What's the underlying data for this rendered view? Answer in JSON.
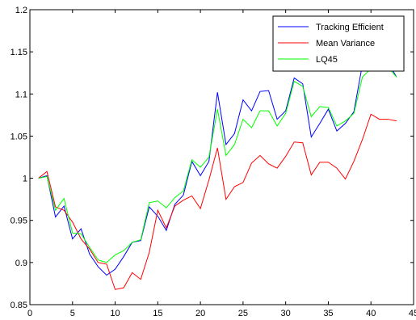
{
  "chart_data": {
    "type": "line",
    "title": "",
    "xlabel": "",
    "ylabel": "",
    "xlim": [
      0,
      45
    ],
    "ylim": [
      0.85,
      1.2
    ],
    "xticks": [
      0,
      5,
      10,
      15,
      20,
      25,
      30,
      35,
      40,
      45
    ],
    "yticks": [
      0.85,
      0.9,
      0.95,
      1,
      1.05,
      1.1,
      1.15,
      1.2
    ],
    "xtick_labels": [
      "0",
      "5",
      "10",
      "15",
      "20",
      "25",
      "30",
      "35",
      "40",
      "45"
    ],
    "ytick_labels": [
      "0.85",
      "0.9",
      "0.95",
      "1",
      "1.05",
      "1.1",
      "1.15",
      "1.2"
    ],
    "grid": false,
    "legend_position": "top-right",
    "x": [
      1,
      2,
      3,
      4,
      5,
      6,
      7,
      8,
      9,
      10,
      11,
      12,
      13,
      14,
      15,
      16,
      17,
      18,
      19,
      20,
      21,
      22,
      23,
      24,
      25,
      26,
      27,
      28,
      29,
      30,
      31,
      32,
      33,
      34,
      35,
      36,
      37,
      38,
      39,
      40,
      41,
      42,
      43
    ],
    "series": [
      {
        "name": "Tracking Efficient",
        "color": "#0000ff",
        "values": [
          1.0,
          1.003,
          0.954,
          0.967,
          0.928,
          0.94,
          0.91,
          0.895,
          0.885,
          0.892,
          0.907,
          0.924,
          0.926,
          0.966,
          0.955,
          0.938,
          0.969,
          0.98,
          1.02,
          1.003,
          1.02,
          1.102,
          1.04,
          1.053,
          1.093,
          1.08,
          1.103,
          1.104,
          1.07,
          1.08,
          1.119,
          1.112,
          1.049,
          1.065,
          1.082,
          1.056,
          1.065,
          1.079,
          1.135,
          1.14,
          1.142,
          1.138,
          1.12
        ]
      },
      {
        "name": "Mean Variance",
        "color": "#ff0000",
        "values": [
          1.0,
          1.008,
          0.966,
          0.962,
          0.948,
          0.928,
          0.916,
          0.9,
          0.898,
          0.868,
          0.87,
          0.888,
          0.88,
          0.912,
          0.962,
          0.941,
          0.967,
          0.974,
          0.979,
          0.964,
          0.998,
          1.036,
          0.975,
          0.99,
          0.995,
          1.018,
          1.027,
          1.017,
          1.012,
          1.026,
          1.043,
          1.042,
          1.004,
          1.019,
          1.019,
          1.012,
          0.999,
          1.02,
          1.046,
          1.076,
          1.07,
          1.07,
          1.068
        ]
      },
      {
        "name": "LQ45",
        "color": "#00ff00",
        "values": [
          1.0,
          1.002,
          0.962,
          0.976,
          0.935,
          0.934,
          0.918,
          0.903,
          0.9,
          0.909,
          0.914,
          0.924,
          0.927,
          0.971,
          0.973,
          0.965,
          0.977,
          0.985,
          1.022,
          1.013,
          1.025,
          1.082,
          1.027,
          1.04,
          1.07,
          1.06,
          1.08,
          1.08,
          1.062,
          1.077,
          1.115,
          1.109,
          1.073,
          1.085,
          1.084,
          1.062,
          1.068,
          1.077,
          1.12,
          1.13,
          1.138,
          1.132,
          1.12
        ]
      }
    ]
  }
}
